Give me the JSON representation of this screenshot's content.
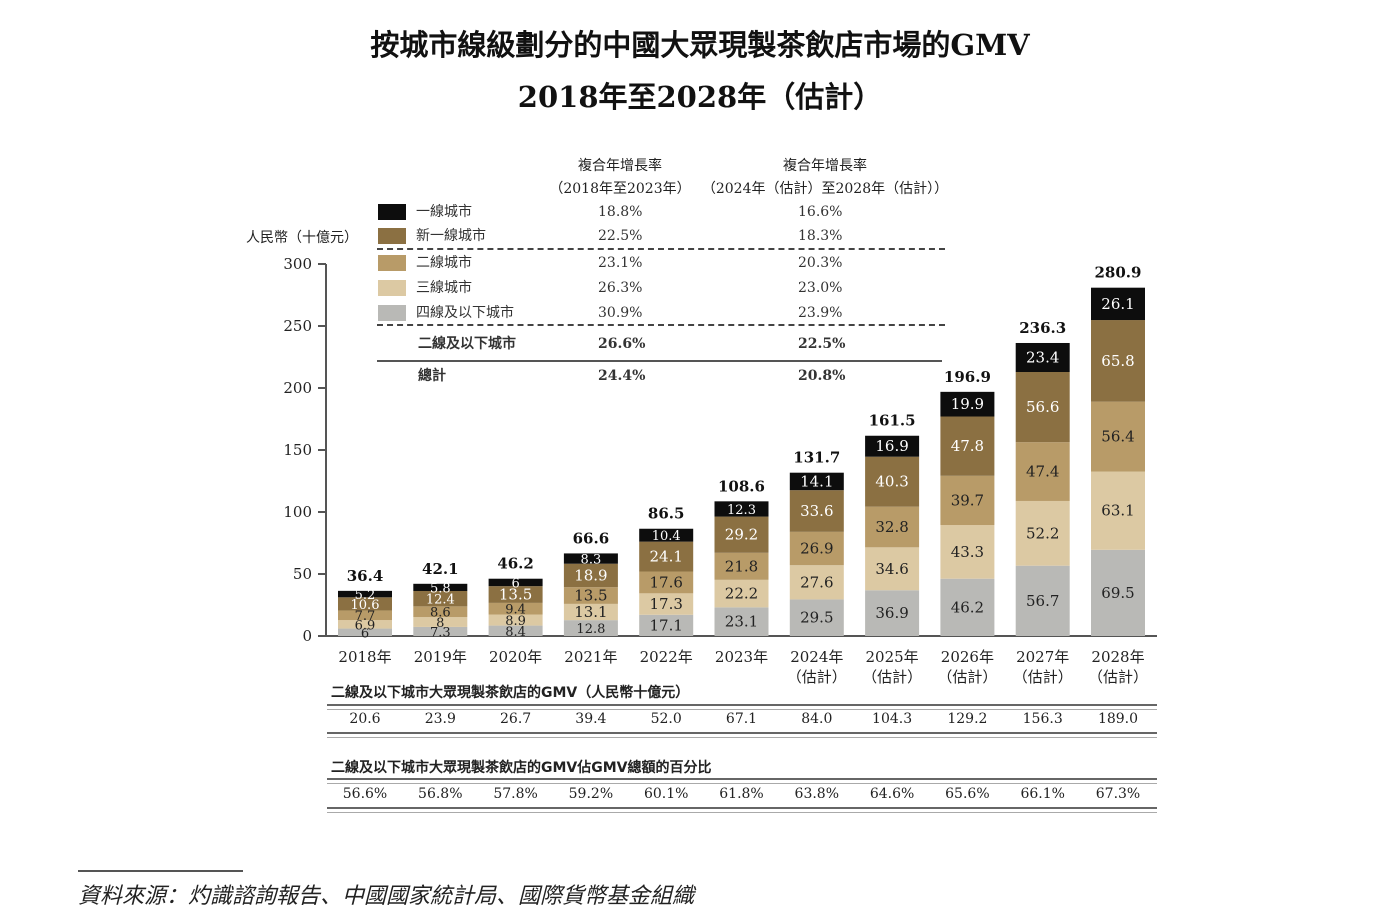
{
  "title": "按城市線級劃分的中國大眾現製茶飲店市場的GMV",
  "subtitle": "2018年至2028年（估計）",
  "y_unit_label": "人民幣（十億元）",
  "cagr_headers": [
    {
      "line1": "複合年增長率",
      "line2": "（2018年至2023年）"
    },
    {
      "line1": "複合年增長率",
      "line2": "（2024年（估計）至2028年（估計））"
    }
  ],
  "legend": [
    {
      "label": "一線城市",
      "color": "#0d0d0d",
      "cagr1": "18.8%",
      "cagr2": "16.6%"
    },
    {
      "label": "新一線城市",
      "color": "#8b7042",
      "cagr1": "22.5%",
      "cagr2": "18.3%"
    },
    {
      "label": "二線城市",
      "color": "#b89b68",
      "cagr1": "23.1%",
      "cagr2": "20.3%"
    },
    {
      "label": "三線城市",
      "color": "#dcc9a3",
      "cagr1": "26.3%",
      "cagr2": "23.0%"
    },
    {
      "label": "四線及以下城市",
      "color": "#b9b9b6",
      "cagr1": "30.9%",
      "cagr2": "23.9%"
    }
  ],
  "summary_rows": [
    {
      "label": "二線及以下城市",
      "cagr1": "26.6%",
      "cagr2": "22.5%"
    },
    {
      "label": "總計",
      "cagr1": "24.4%",
      "cagr2": "20.8%"
    }
  ],
  "chart_data": {
    "type": "bar",
    "stacked": true,
    "title": "按城市線級劃分的中國大眾現製茶飲店市場的GMV 2018年至2028年（估計）",
    "xlabel": "",
    "ylabel": "人民幣（十億元）",
    "ylim": [
      0,
      300
    ],
    "yticks": [
      0,
      50,
      100,
      150,
      200,
      250,
      300
    ],
    "categories": [
      "2018年",
      "2019年",
      "2020年",
      "2021年",
      "2022年",
      "2023年",
      "2024年（估計）",
      "2025年（估計）",
      "2026年（估計）",
      "2027年（估計）",
      "2028年（估計）"
    ],
    "category_lines": [
      [
        "2018年"
      ],
      [
        "2019年"
      ],
      [
        "2020年"
      ],
      [
        "2021年"
      ],
      [
        "2022年"
      ],
      [
        "2023年"
      ],
      [
        "2024年",
        "（估計）"
      ],
      [
        "2025年",
        "（估計）"
      ],
      [
        "2026年",
        "（估計）"
      ],
      [
        "2027年",
        "（估計）"
      ],
      [
        "2028年",
        "（估計）"
      ]
    ],
    "series": [
      {
        "name": "四線及以下城市",
        "values": [
          6.0,
          7.3,
          8.4,
          12.8,
          17.1,
          23.1,
          29.5,
          36.9,
          46.2,
          56.7,
          69.5
        ]
      },
      {
        "name": "三線城市",
        "values": [
          6.9,
          8.0,
          8.9,
          13.1,
          17.3,
          22.2,
          27.6,
          34.6,
          43.3,
          52.2,
          63.1
        ]
      },
      {
        "name": "二線城市",
        "values": [
          7.7,
          8.6,
          9.4,
          13.5,
          17.6,
          21.8,
          26.9,
          32.8,
          39.7,
          47.4,
          56.4
        ]
      },
      {
        "name": "新一線城市",
        "values": [
          10.6,
          12.4,
          13.5,
          18.9,
          24.1,
          29.2,
          33.6,
          40.3,
          47.8,
          56.6,
          65.8
        ]
      },
      {
        "name": "一線城市",
        "values": [
          5.2,
          5.8,
          6.0,
          8.3,
          10.4,
          12.3,
          14.1,
          16.9,
          19.9,
          23.4,
          26.1
        ]
      }
    ],
    "totals": [
      36.4,
      42.1,
      46.2,
      66.6,
      86.5,
      108.6,
      131.7,
      161.5,
      196.9,
      236.3,
      280.9
    ],
    "legend_position": "top-left",
    "grid": false
  },
  "table_lower_tier_gmv": {
    "title": "二線及以下城市大眾現製茶飲店的GMV（人民幣十億元）",
    "values": [
      "20.6",
      "23.9",
      "26.7",
      "39.4",
      "52.0",
      "67.1",
      "84.0",
      "104.3",
      "129.2",
      "156.3",
      "189.0"
    ]
  },
  "table_lower_tier_share": {
    "title": "二線及以下城市大眾現製茶飲店的GMV佔GMV總額的百分比",
    "values": [
      "56.6%",
      "56.8%",
      "57.8%",
      "59.2%",
      "60.1%",
      "61.8%",
      "63.8%",
      "64.6%",
      "65.6%",
      "66.1%",
      "67.3%"
    ]
  },
  "source": "資料來源：灼識諮詢報告、中國國家統計局、國際貨幣基金組織"
}
